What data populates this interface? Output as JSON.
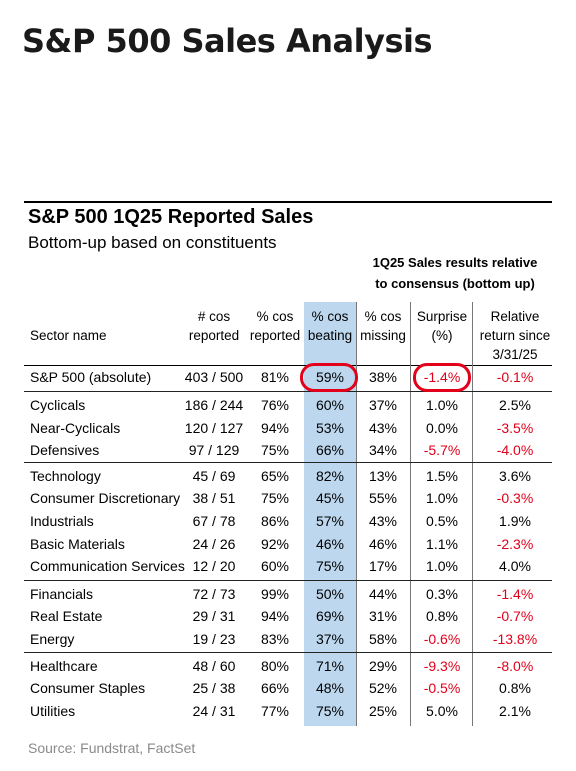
{
  "page_title": "S&P 500 Sales Analysis",
  "table": {
    "title": "S&P 500 1Q25 Reported Sales",
    "subtitle": "Bottom-up based on constituents",
    "group_header_line1": "1Q25 Sales results relative",
    "group_header_line2": "to consensus (bottom up)",
    "columns": {
      "sector_name": "Sector name",
      "cos_reported_1": "# cos",
      "cos_reported_2": "reported",
      "pct_reported_1": "% cos",
      "pct_reported_2": "reported",
      "pct_beating_1": "% cos",
      "pct_beating_2": "beating",
      "pct_missing_1": "% cos",
      "pct_missing_2": "missing",
      "surprise_1": "Surprise",
      "surprise_2": "(%)",
      "rel_return_1": "Relative",
      "rel_return_2": "return since",
      "rel_return_3": "3/31/25"
    },
    "rows": [
      {
        "name": "S&P 500 (absolute)",
        "reported": "403 / 500",
        "pct_reported": "81%",
        "pct_beating": "59%",
        "pct_missing": "38%",
        "surprise": "-1.4%",
        "rel_return": "-0.1%"
      },
      {
        "name": "Cyclicals",
        "reported": "186 / 244",
        "pct_reported": "76%",
        "pct_beating": "60%",
        "pct_missing": "37%",
        "surprise": "1.0%",
        "rel_return": "2.5%"
      },
      {
        "name": "Near-Cyclicals",
        "reported": "120 / 127",
        "pct_reported": "94%",
        "pct_beating": "53%",
        "pct_missing": "43%",
        "surprise": "0.0%",
        "rel_return": "-3.5%"
      },
      {
        "name": "Defensives",
        "reported": "97 / 129",
        "pct_reported": "75%",
        "pct_beating": "66%",
        "pct_missing": "34%",
        "surprise": "-5.7%",
        "rel_return": "-4.0%"
      },
      {
        "name": "Technology",
        "reported": "45 / 69",
        "pct_reported": "65%",
        "pct_beating": "82%",
        "pct_missing": "13%",
        "surprise": "1.5%",
        "rel_return": "3.6%"
      },
      {
        "name": "Consumer Discretionary",
        "reported": "38 / 51",
        "pct_reported": "75%",
        "pct_beating": "45%",
        "pct_missing": "55%",
        "surprise": "1.0%",
        "rel_return": "-0.3%"
      },
      {
        "name": "Industrials",
        "reported": "67 / 78",
        "pct_reported": "86%",
        "pct_beating": "57%",
        "pct_missing": "43%",
        "surprise": "0.5%",
        "rel_return": "1.9%"
      },
      {
        "name": "Basic Materials",
        "reported": "24 / 26",
        "pct_reported": "92%",
        "pct_beating": "46%",
        "pct_missing": "46%",
        "surprise": "1.1%",
        "rel_return": "-2.3%"
      },
      {
        "name": "Communication Services",
        "reported": "12 / 20",
        "pct_reported": "60%",
        "pct_beating": "75%",
        "pct_missing": "17%",
        "surprise": "1.0%",
        "rel_return": "4.0%"
      },
      {
        "name": "Financials",
        "reported": "72 / 73",
        "pct_reported": "99%",
        "pct_beating": "50%",
        "pct_missing": "44%",
        "surprise": "0.3%",
        "rel_return": "-1.4%"
      },
      {
        "name": "Real Estate",
        "reported": "29 / 31",
        "pct_reported": "94%",
        "pct_beating": "69%",
        "pct_missing": "31%",
        "surprise": "0.8%",
        "rel_return": "-0.7%"
      },
      {
        "name": "Energy",
        "reported": "19 / 23",
        "pct_reported": "83%",
        "pct_beating": "37%",
        "pct_missing": "58%",
        "surprise": "-0.6%",
        "rel_return": "-13.8%"
      },
      {
        "name": "Healthcare",
        "reported": "48 / 60",
        "pct_reported": "80%",
        "pct_beating": "71%",
        "pct_missing": "29%",
        "surprise": "-9.3%",
        "rel_return": "-8.0%"
      },
      {
        "name": "Consumer Staples",
        "reported": "25 / 38",
        "pct_reported": "66%",
        "pct_beating": "48%",
        "pct_missing": "52%",
        "surprise": "-0.5%",
        "rel_return": "0.8%"
      },
      {
        "name": "Utilities",
        "reported": "24 / 31",
        "pct_reported": "77%",
        "pct_beating": "75%",
        "pct_missing": "25%",
        "surprise": "5.0%",
        "rel_return": "2.1%"
      }
    ]
  },
  "source": "Source: Fundstrat, FactSet",
  "colors": {
    "highlight_column": "#bcd7ee",
    "negative_value": "#e0001a",
    "circle_annotation": "#e3001b"
  }
}
